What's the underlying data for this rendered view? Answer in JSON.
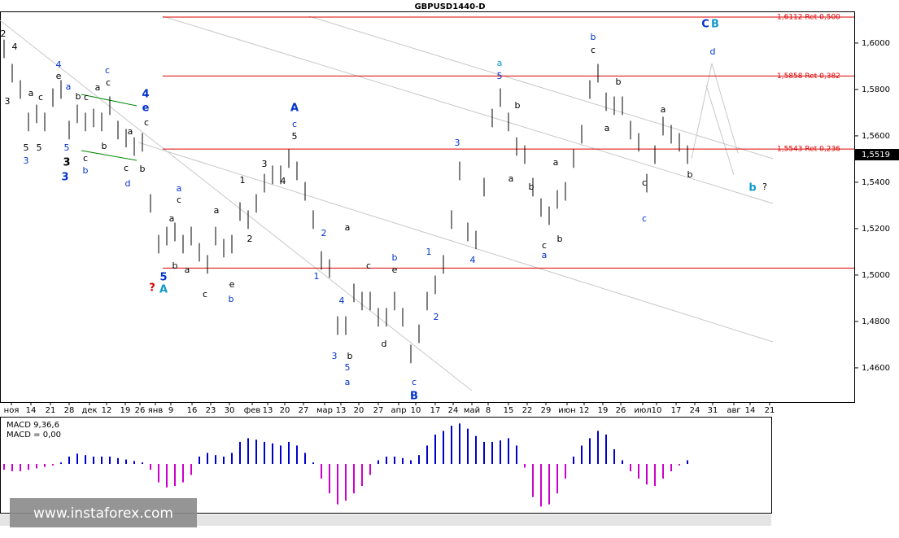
{
  "chart_data": {
    "type": "ohlc",
    "title": "GBPUSD1440-D",
    "ylim": [
      1.4456,
      1.6133
    ],
    "yticks": [
      {
        "value": 1.6,
        "label": "1,6000"
      },
      {
        "value": 1.58,
        "label": "1,5800"
      },
      {
        "value": 1.56,
        "label": "1,5600"
      },
      {
        "value": 1.54,
        "label": "1,5400"
      },
      {
        "value": 1.52,
        "label": "1,5200"
      },
      {
        "value": 1.5,
        "label": "1,5000"
      },
      {
        "value": 1.48,
        "label": "1,4800"
      },
      {
        "value": 1.46,
        "label": "1,4600"
      }
    ],
    "xticks": [
      "ноя",
      "14",
      "21",
      "28",
      "дек",
      "12",
      "19",
      "26",
      "янв",
      "9",
      "16",
      "23",
      "30",
      "фев",
      "13",
      "20",
      "27",
      "мар",
      "13",
      "20",
      "27",
      "апр",
      "10",
      "17",
      "24",
      "май",
      "8",
      "15",
      "22",
      "29",
      "июн",
      "12",
      "19",
      "26",
      "июл",
      "10",
      "17",
      "24",
      "31",
      "авг",
      "14",
      "21"
    ],
    "high": [
      1.6015,
      1.591,
      1.584,
      1.57,
      1.5735,
      1.57,
      1.5805,
      1.584,
      1.5665,
      1.5735,
      1.57,
      1.5717,
      1.57,
      1.577,
      1.5665,
      1.563,
      1.5594,
      1.5612,
      1.5349,
      1.5173,
      1.5208,
      1.5226,
      1.5173,
      1.5208,
      1.5138,
      1.5086,
      1.5208,
      1.5156,
      1.5173,
      1.5314,
      1.5279,
      1.5349,
      1.5436,
      1.5472,
      1.5472,
      1.5542,
      1.5489,
      1.5401,
      1.5279,
      1.5103,
      1.5068,
      1.4822,
      1.4822,
      1.4963,
      1.4928,
      1.4928,
      1.4858,
      1.4858,
      1.4928,
      1.4858,
      1.47,
      1.4787,
      1.4928,
      1.4998,
      1.5086,
      1.5279,
      1.5489,
      1.5226,
      1.5191,
      1.5419,
      1.5717,
      1.5805,
      1.57,
      1.5594,
      1.5559,
      1.5419,
      1.5331,
      1.5296,
      1.5366,
      1.5401,
      1.5542,
      1.5647,
      1.584,
      1.591,
      1.5787,
      1.577,
      1.577,
      1.5665,
      1.5612,
      1.5436,
      1.5559,
      1.5682,
      1.5647,
      1.5612,
      1.5559
    ],
    "low": [
      1.5935,
      1.583,
      1.576,
      1.562,
      1.5655,
      1.562,
      1.5725,
      1.576,
      1.5585,
      1.5655,
      1.562,
      1.5637,
      1.562,
      1.569,
      1.5585,
      1.555,
      1.5514,
      1.5532,
      1.5269,
      1.5093,
      1.5128,
      1.5146,
      1.5093,
      1.5128,
      1.5058,
      1.5006,
      1.5128,
      1.5076,
      1.5093,
      1.5234,
      1.5199,
      1.5269,
      1.5356,
      1.5392,
      1.5392,
      1.5462,
      1.5409,
      1.5321,
      1.5199,
      1.5023,
      1.4988,
      1.4742,
      1.4742,
      1.4883,
      1.4848,
      1.4848,
      1.4778,
      1.4778,
      1.4848,
      1.4778,
      1.462,
      1.4707,
      1.4848,
      1.4918,
      1.5006,
      1.5199,
      1.5409,
      1.5146,
      1.5111,
      1.5339,
      1.5637,
      1.5725,
      1.562,
      1.5514,
      1.5479,
      1.5339,
      1.5251,
      1.5216,
      1.5286,
      1.5321,
      1.5462,
      1.5567,
      1.576,
      1.583,
      1.5707,
      1.569,
      1.569,
      1.5585,
      1.5532,
      1.5356,
      1.5479,
      1.5602,
      1.5567,
      1.5532,
      1.5479
    ],
    "levels": [
      {
        "value": 1.6112,
        "label": "1,6112 Ret 0,500"
      },
      {
        "value": 1.5858,
        "label": "1,5858 Ret 0,382"
      },
      {
        "value": 1.5543,
        "label": "1,5543 Ret 0,236"
      }
    ],
    "support_line": 1.503,
    "last": {
      "value": 1.5519,
      "label": "1,5519"
    },
    "macd": {
      "title": "MACD 9,36,6",
      "value_text": "MACD = 0,00",
      "ylim": [
        -0.0062,
        0.0062
      ],
      "positive_color": "#0000cc",
      "negative_color": "#cc00cc",
      "values": [
        -0.0008,
        -0.001,
        -0.001,
        -0.0008,
        -0.0006,
        -0.0004,
        -0.0002,
        0.0002,
        0.001,
        0.0014,
        0.0012,
        0.001,
        0.001,
        0.001,
        0.0008,
        0.0006,
        0.0004,
        0.0002,
        -0.0008,
        -0.0025,
        -0.0032,
        -0.003,
        -0.0025,
        -0.0015,
        0.001,
        0.0015,
        0.0012,
        0.001,
        0.0015,
        0.003,
        0.0035,
        0.0033,
        0.003,
        0.0028,
        0.0025,
        0.003,
        0.0025,
        0.0015,
        0.0002,
        -0.002,
        -0.004,
        -0.0055,
        -0.005,
        -0.004,
        -0.003,
        -0.0015,
        0.0005,
        0.001,
        0.001,
        0.0008,
        0.0005,
        0.0012,
        0.0025,
        0.004,
        0.0045,
        0.0052,
        0.0055,
        0.0048,
        0.0038,
        0.003,
        0.003,
        0.0032,
        0.0035,
        0.0025,
        -0.0005,
        -0.0045,
        -0.0058,
        -0.0055,
        -0.004,
        -0.002,
        0.001,
        0.0025,
        0.0035,
        0.0045,
        0.004,
        0.002,
        0.0005,
        -0.001,
        -0.002,
        -0.0028,
        -0.003,
        -0.002,
        -0.001,
        -0.0002,
        0.0005
      ]
    },
    "watermark": "www.instaforex.com",
    "annotations": [
      {
        "text": "2",
        "color": "#000"
      },
      {
        "text": "4",
        "color": "#000"
      },
      {
        "text": "3",
        "color": "#000"
      },
      {
        "text": "a",
        "color": "#000"
      },
      {
        "text": "c",
        "color": "#000"
      },
      {
        "text": "5",
        "color": "#000"
      },
      {
        "text": "3",
        "color": "#0033cc"
      },
      {
        "text": "5",
        "color": "#000"
      },
      {
        "text": "4",
        "color": "#0033cc"
      },
      {
        "text": "e",
        "color": "#000"
      },
      {
        "text": "a",
        "color": "#0033cc"
      },
      {
        "text": "b",
        "color": "#000"
      },
      {
        "text": "c",
        "color": "#000"
      },
      {
        "text": "5",
        "color": "#0033cc"
      },
      {
        "text": "3",
        "color": "#000"
      },
      {
        "text": "3",
        "color": "#0033cc"
      },
      {
        "text": "c",
        "color": "#000"
      },
      {
        "text": "b",
        "color": "#0033cc"
      },
      {
        "text": "c",
        "color": "#0033cc"
      },
      {
        "text": "a",
        "color": "#000"
      },
      {
        "text": "c",
        "color": "#000"
      },
      {
        "text": "b",
        "color": "#000"
      },
      {
        "text": "a",
        "color": "#000"
      },
      {
        "text": "c",
        "color": "#000"
      },
      {
        "text": "d",
        "color": "#0033cc"
      },
      {
        "text": "4",
        "color": "#0033cc"
      },
      {
        "text": "e",
        "color": "#0033cc"
      },
      {
        "text": "c",
        "color": "#000"
      },
      {
        "text": "b",
        "color": "#000"
      },
      {
        "text": "a",
        "color": "#0033cc"
      },
      {
        "text": "c",
        "color": "#000"
      },
      {
        "text": "a",
        "color": "#000"
      },
      {
        "text": "b",
        "color": "#000"
      },
      {
        "text": "a",
        "color": "#000"
      },
      {
        "text": "c",
        "color": "#000"
      },
      {
        "text": "a",
        "color": "#000"
      },
      {
        "text": "e",
        "color": "#000"
      },
      {
        "text": "b",
        "color": "#0033cc"
      },
      {
        "text": "5",
        "color": "#0033cc"
      },
      {
        "text": "?",
        "color": "#dd0000"
      },
      {
        "text": "A",
        "color": "#1199cc"
      },
      {
        "text": "1",
        "color": "#000"
      },
      {
        "text": "2",
        "color": "#000"
      },
      {
        "text": "3",
        "color": "#000"
      },
      {
        "text": "4",
        "color": "#000"
      },
      {
        "text": "A",
        "color": "#0033cc"
      },
      {
        "text": "c",
        "color": "#0033cc"
      },
      {
        "text": "5",
        "color": "#000"
      },
      {
        "text": "2",
        "color": "#0033cc"
      },
      {
        "text": "1",
        "color": "#0033cc"
      },
      {
        "text": "4",
        "color": "#0033cc"
      },
      {
        "text": "3",
        "color": "#0033cc"
      },
      {
        "text": "5",
        "color": "#0033cc"
      },
      {
        "text": "a",
        "color": "#0033cc"
      },
      {
        "text": "b",
        "color": "#000"
      },
      {
        "text": "a",
        "color": "#000"
      },
      {
        "text": "c",
        "color": "#000"
      },
      {
        "text": "d",
        "color": "#000"
      },
      {
        "text": "b",
        "color": "#0033cc"
      },
      {
        "text": "e",
        "color": "#000"
      },
      {
        "text": "1",
        "color": "#0033cc"
      },
      {
        "text": "2",
        "color": "#0033cc"
      },
      {
        "text": "c",
        "color": "#0033cc"
      },
      {
        "text": "B",
        "color": "#0033cc"
      },
      {
        "text": "3",
        "color": "#0033cc"
      },
      {
        "text": "4",
        "color": "#0033cc"
      },
      {
        "text": "a",
        "color": "#1199cc"
      },
      {
        "text": "5",
        "color": "#0033cc"
      },
      {
        "text": "b",
        "color": "#000"
      },
      {
        "text": "a",
        "color": "#000"
      },
      {
        "text": "b",
        "color": "#000"
      },
      {
        "text": "a",
        "color": "#000"
      },
      {
        "text": "c",
        "color": "#000"
      },
      {
        "text": "b",
        "color": "#000"
      },
      {
        "text": "a",
        "color": "#0033cc"
      },
      {
        "text": "b",
        "color": "#0033cc"
      },
      {
        "text": "c",
        "color": "#000"
      },
      {
        "text": "b",
        "color": "#000"
      },
      {
        "text": "a",
        "color": "#000"
      },
      {
        "text": "a",
        "color": "#000"
      },
      {
        "text": "b",
        "color": "#000"
      },
      {
        "text": "c",
        "color": "#000"
      },
      {
        "text": "c",
        "color": "#0033cc"
      },
      {
        "text": "d",
        "color": "#0033cc"
      },
      {
        "text": "C",
        "color": "#0033cc"
      },
      {
        "text": "B",
        "color": "#1199cc"
      },
      {
        "text": "b",
        "color": "#1199cc"
      },
      {
        "text": "?",
        "color": "#000"
      }
    ]
  }
}
